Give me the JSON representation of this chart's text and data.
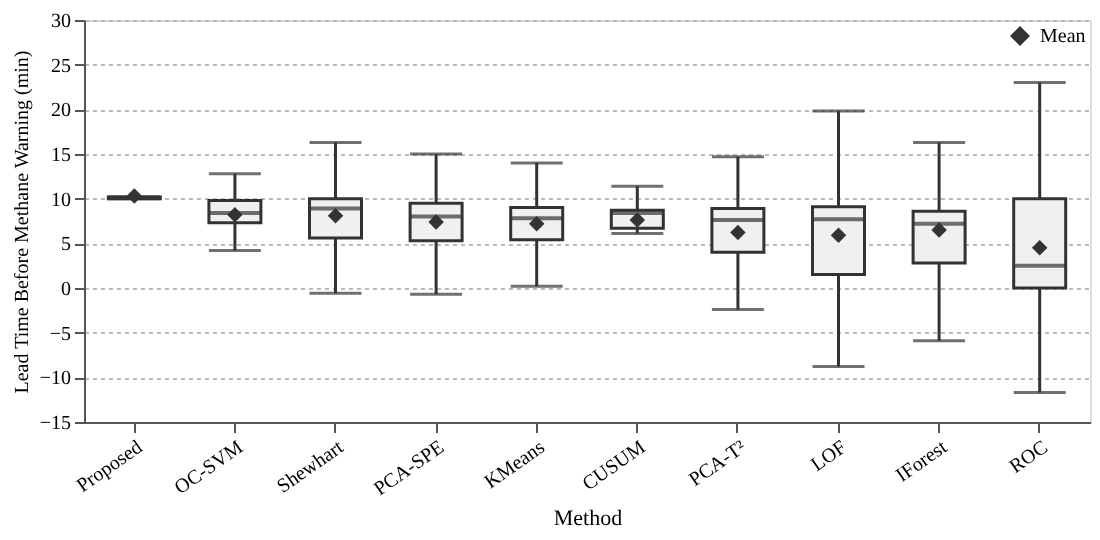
{
  "chart_data": {
    "type": "box",
    "xlabel": "Method",
    "ylabel": "Lead Time Before Methane Warning (min)",
    "categories": [
      "Proposed",
      "OC-SVM",
      "Shewhart",
      "PCA-SPE",
      "KMeans",
      "CUSUM",
      "PCA-T²",
      "LOF",
      "IForest",
      "ROC"
    ],
    "ylim": [
      -15,
      30
    ],
    "yticks": [
      -15,
      -10,
      -5,
      0,
      5,
      10,
      15,
      20,
      25,
      30
    ],
    "grid": "y",
    "legend": "top right",
    "marker": "diamond",
    "series": [
      {
        "name": "Mean",
        "color": "#333333",
        "boxes": [
          {
            "low": 10.0,
            "q1": 10.0,
            "median": 10.1,
            "q3": 10.2,
            "high": 10.2,
            "mean": 10.3
          },
          {
            "low": 4.2,
            "q1": 7.3,
            "median": 8.4,
            "q3": 9.8,
            "high": 12.8,
            "mean": 8.2
          },
          {
            "low": -0.6,
            "q1": 5.6,
            "median": 8.9,
            "q3": 10.0,
            "high": 16.3,
            "mean": 8.1
          },
          {
            "low": -0.7,
            "q1": 5.3,
            "median": 8.0,
            "q3": 9.5,
            "high": 15.0,
            "mean": 7.4
          },
          {
            "low": 0.2,
            "q1": 5.4,
            "median": 7.8,
            "q3": 9.0,
            "high": 14.0,
            "mean": 7.2
          },
          {
            "low": 6.1,
            "q1": 6.7,
            "median": 8.4,
            "q3": 8.7,
            "high": 11.4,
            "mean": 7.6
          },
          {
            "low": -2.4,
            "q1": 4.0,
            "median": 7.6,
            "q3": 8.9,
            "high": 14.7,
            "mean": 6.2
          },
          {
            "low": -8.8,
            "q1": 1.5,
            "median": 7.7,
            "q3": 9.1,
            "high": 19.8,
            "mean": 5.9
          },
          {
            "low": -5.9,
            "q1": 2.8,
            "median": 7.2,
            "q3": 8.6,
            "high": 16.3,
            "mean": 6.5
          },
          {
            "low": -11.7,
            "q1": 0.0,
            "median": 2.5,
            "q3": 10.0,
            "high": 23.0,
            "mean": 4.5
          }
        ]
      }
    ]
  }
}
